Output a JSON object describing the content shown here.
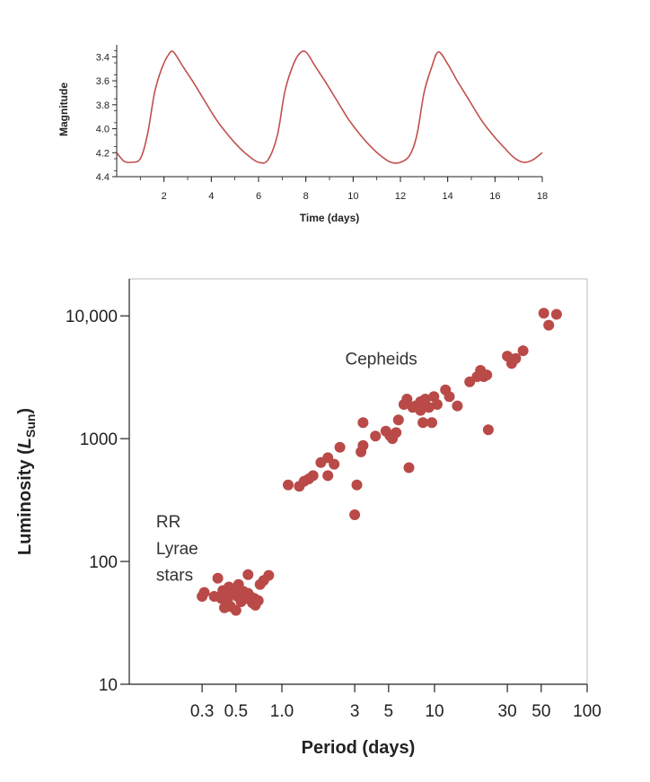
{
  "colors": {
    "curve": "#c0504d",
    "points": "#b94a48",
    "axis": "#222222",
    "frame": "#bbbbbb"
  },
  "chart_data": [
    {
      "type": "line",
      "title": "",
      "xlabel": "Time (days)",
      "ylabel": "Magnitude",
      "xlim": [
        0,
        18
      ],
      "ylim": [
        4.4,
        3.3
      ],
      "y_inverted": true,
      "x_ticks": [
        2,
        4,
        6,
        8,
        10,
        12,
        14,
        16,
        18
      ],
      "x_tick_labels": [
        "2",
        "4",
        "6",
        "8",
        "10",
        "12",
        "14",
        "16",
        "18"
      ],
      "y_ticks": [
        3.4,
        3.6,
        3.8,
        4.0,
        4.2,
        4.4
      ],
      "y_tick_labels": [
        "3.4",
        "3.6",
        "3.8",
        "4.0",
        "4.2",
        "4.4"
      ],
      "grid": false,
      "series": [
        {
          "x": [
            0,
            0.3,
            0.6,
            1.0,
            1.3,
            1.6,
            1.9,
            2.2,
            2.4,
            2.8,
            3.2,
            3.7,
            4.2,
            4.7,
            5.2,
            5.6,
            6.0,
            6.4,
            6.8,
            7.1,
            7.4,
            7.7,
            8.0,
            8.4,
            8.8,
            9.3,
            9.8,
            10.3,
            10.8,
            11.2,
            11.6,
            12.0,
            12.4,
            12.7,
            13.0,
            13.3,
            13.6,
            14.0,
            14.4,
            14.9,
            15.4,
            15.9,
            16.4,
            16.8,
            17.2,
            17.6,
            18.0
          ],
          "y": [
            4.2,
            4.27,
            4.28,
            4.25,
            4.05,
            3.7,
            3.5,
            3.38,
            3.36,
            3.48,
            3.6,
            3.76,
            3.92,
            4.05,
            4.16,
            4.23,
            4.28,
            4.26,
            4.05,
            3.7,
            3.5,
            3.38,
            3.36,
            3.48,
            3.6,
            3.76,
            3.92,
            4.05,
            4.16,
            4.23,
            4.28,
            4.28,
            4.22,
            4.05,
            3.7,
            3.5,
            3.36,
            3.46,
            3.6,
            3.76,
            3.92,
            4.05,
            4.16,
            4.24,
            4.28,
            4.26,
            4.2
          ]
        }
      ]
    },
    {
      "type": "scatter",
      "title": "",
      "xlabel": "Period (days)",
      "ylabel_main": "Luminosity (",
      "ylabel_symbol": "L",
      "ylabel_sub": "Sun",
      "ylabel_close": ")",
      "xscale": "log",
      "yscale": "log",
      "xlim": [
        0.1,
        100
      ],
      "ylim": [
        10,
        20000
      ],
      "x_ticks": [
        0.3,
        0.5,
        1.0,
        3,
        5,
        10,
        30,
        50,
        100
      ],
      "x_tick_labels": [
        "0.3",
        "0.5",
        "1.0",
        "3",
        "5",
        "10",
        "30",
        "50",
        "100"
      ],
      "y_ticks": [
        10,
        100,
        1000,
        10000
      ],
      "y_tick_labels": [
        "10",
        "100",
        "1000",
        "10,000"
      ],
      "grid": false,
      "annotations": [
        {
          "text": "Cepheids",
          "x": 2.6,
          "y": 4000
        },
        {
          "text": "RR",
          "x": 0.15,
          "y": 190
        },
        {
          "text": "Lyrae",
          "x": 0.15,
          "y": 115
        },
        {
          "text": "stars",
          "x": 0.15,
          "y": 70
        }
      ],
      "points": [
        [
          0.3,
          52
        ],
        [
          0.31,
          56
        ],
        [
          0.36,
          52
        ],
        [
          0.38,
          73
        ],
        [
          0.4,
          50
        ],
        [
          0.41,
          58
        ],
        [
          0.42,
          42
        ],
        [
          0.43,
          56
        ],
        [
          0.44,
          48
        ],
        [
          0.45,
          62
        ],
        [
          0.46,
          43
        ],
        [
          0.48,
          55
        ],
        [
          0.5,
          60
        ],
        [
          0.5,
          40
        ],
        [
          0.51,
          52
        ],
        [
          0.52,
          65
        ],
        [
          0.54,
          47
        ],
        [
          0.56,
          57
        ],
        [
          0.58,
          50
        ],
        [
          0.6,
          55
        ],
        [
          0.6,
          78
        ],
        [
          0.62,
          52
        ],
        [
          0.64,
          46
        ],
        [
          0.66,
          50
        ],
        [
          0.67,
          44
        ],
        [
          0.7,
          48
        ],
        [
          0.72,
          65
        ],
        [
          0.76,
          70
        ],
        [
          0.82,
          77
        ],
        [
          1.1,
          420
        ],
        [
          1.3,
          410
        ],
        [
          1.4,
          450
        ],
        [
          1.5,
          470
        ],
        [
          1.6,
          500
        ],
        [
          1.8,
          640
        ],
        [
          2.0,
          700
        ],
        [
          2.0,
          500
        ],
        [
          2.2,
          620
        ],
        [
          2.4,
          850
        ],
        [
          3.0,
          240
        ],
        [
          3.1,
          420
        ],
        [
          3.3,
          780
        ],
        [
          3.4,
          880
        ],
        [
          3.4,
          1350
        ],
        [
          4.1,
          1050
        ],
        [
          4.8,
          1150
        ],
        [
          5.1,
          1060
        ],
        [
          5.3,
          1000
        ],
        [
          5.6,
          1120
        ],
        [
          5.8,
          1420
        ],
        [
          6.3,
          1900
        ],
        [
          6.6,
          2100
        ],
        [
          6.8,
          580
        ],
        [
          7.2,
          1800
        ],
        [
          7.5,
          1850
        ],
        [
          8.1,
          1700
        ],
        [
          8.1,
          2000
        ],
        [
          8.4,
          1350
        ],
        [
          8.7,
          2100
        ],
        [
          9.2,
          1800
        ],
        [
          9.6,
          1350
        ],
        [
          9.9,
          2200
        ],
        [
          10.4,
          1900
        ],
        [
          11.8,
          2500
        ],
        [
          12.5,
          2200
        ],
        [
          14.1,
          1850
        ],
        [
          17,
          2900
        ],
        [
          19,
          3200
        ],
        [
          20,
          3600
        ],
        [
          21,
          3200
        ],
        [
          22,
          3300
        ],
        [
          22.5,
          1180
        ],
        [
          30,
          4700
        ],
        [
          32,
          4100
        ],
        [
          34,
          4500
        ],
        [
          38,
          5200
        ],
        [
          52,
          10500
        ],
        [
          56,
          8400
        ],
        [
          63,
          10300
        ]
      ]
    }
  ]
}
